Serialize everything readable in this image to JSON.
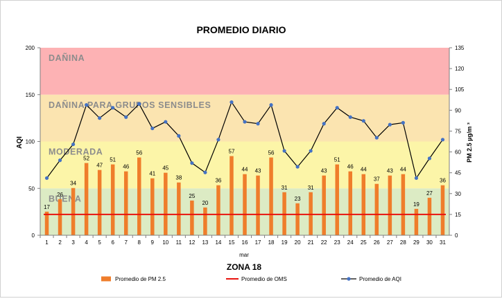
{
  "chart_data": {
    "type": "bar",
    "title": "PROMEDIO DIARIO",
    "subtitle": "ZONA 18",
    "xlabel": "mar",
    "ylabel_left": "AQI",
    "ylabel_right": "PM 2.5 µg/m ³",
    "categories": [
      "1",
      "2",
      "3",
      "4",
      "5",
      "6",
      "7",
      "8",
      "9",
      "10",
      "11",
      "12",
      "13",
      "14",
      "15",
      "16",
      "17",
      "18",
      "19",
      "20",
      "21",
      "22",
      "23",
      "24",
      "25",
      "26",
      "27",
      "28",
      "29",
      "30",
      "31"
    ],
    "ylim_left": [
      0,
      200
    ],
    "yticks_left": [
      0,
      50,
      100,
      150,
      200
    ],
    "ylim_right": [
      0,
      135
    ],
    "yticks_right": [
      0,
      15,
      30,
      45,
      60,
      75,
      90,
      105,
      120,
      135
    ],
    "bands": [
      {
        "label": "BUENA",
        "from": 0,
        "to": 50,
        "color": "#dcebc4"
      },
      {
        "label": "MODERADA",
        "from": 50,
        "to": 100,
        "color": "#fcf5a8"
      },
      {
        "label": "DAÑINA PARA GRUPOS SENSIBLES",
        "from": 100,
        "to": 150,
        "color": "#fbe4b0"
      },
      {
        "label": "DAÑINA",
        "from": 150,
        "to": 200,
        "color": "#fdb2b4"
      }
    ],
    "series": [
      {
        "name": "Promedio de PM 2.5",
        "type": "bar",
        "axis": "right",
        "color": "#ef7d2b",
        "values": [
          17,
          26,
          34,
          52,
          47,
          51,
          46,
          56,
          41,
          45,
          38,
          25,
          20,
          36,
          57,
          44,
          43,
          56,
          31,
          23,
          31,
          43,
          51,
          46,
          44,
          37,
          43,
          44,
          19,
          27,
          36
        ]
      },
      {
        "name": "Promedio de OMS",
        "type": "line",
        "axis": "right",
        "color": "#e8130d",
        "values": [
          15,
          15,
          15,
          15,
          15,
          15,
          15,
          15,
          15,
          15,
          15,
          15,
          15,
          15,
          15,
          15,
          15,
          15,
          15,
          15,
          15,
          15,
          15,
          15,
          15,
          15,
          15,
          15,
          15,
          15,
          15
        ]
      },
      {
        "name": "Promedio de AQI",
        "type": "line",
        "axis": "left",
        "color": "#000000",
        "marker_color": "#4472c4",
        "values": [
          61,
          80,
          97,
          139,
          125,
          136,
          126,
          140,
          114,
          121,
          106,
          77,
          67,
          102,
          142,
          121,
          119,
          139,
          90,
          73,
          90,
          119,
          136,
          126,
          122,
          104,
          118,
          120,
          61,
          82,
          102
        ]
      }
    ],
    "legend_position": "bottom"
  }
}
